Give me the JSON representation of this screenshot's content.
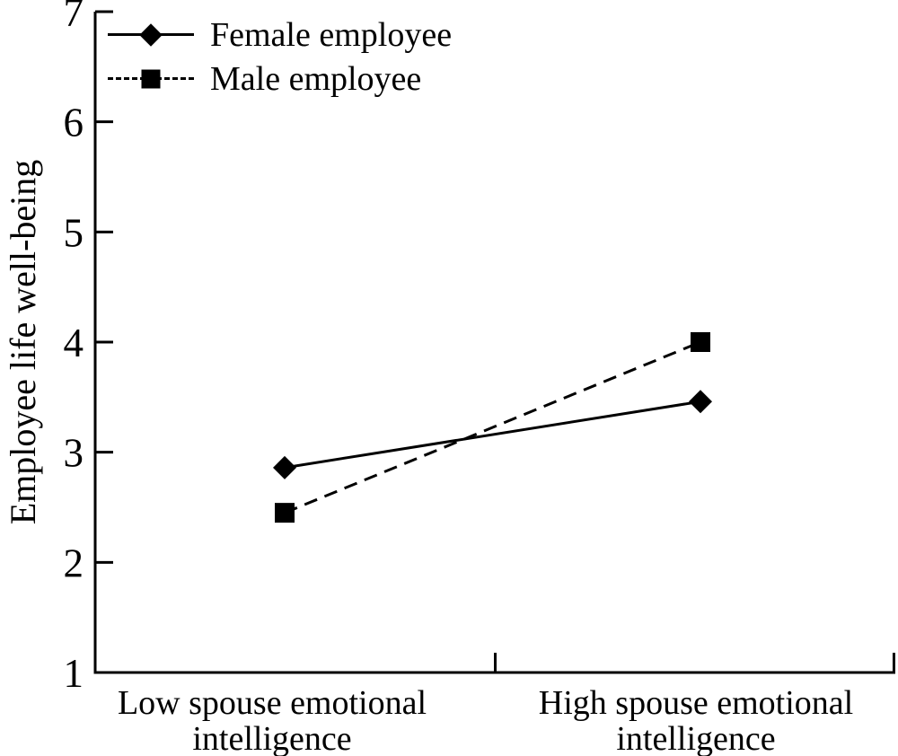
{
  "chart_data": {
    "type": "line",
    "title": "",
    "xlabel": "",
    "ylabel": "Employee life well-being",
    "categories": [
      "Low spouse emotional intelligence",
      "High spouse emotional intelligence"
    ],
    "series": [
      {
        "name": "Female employee",
        "marker": "diamond",
        "line_style": "solid",
        "values": [
          2.86,
          3.46
        ]
      },
      {
        "name": "Male employee",
        "marker": "square",
        "line_style": "dashed",
        "values": [
          2.45,
          4.0
        ]
      }
    ],
    "ylim": [
      1,
      7
    ],
    "yticks": [
      1,
      2,
      3,
      4,
      5,
      6,
      7
    ],
    "grid": false,
    "legend_position": "top-left",
    "colors": {
      "line": "#000000",
      "text": "#000000",
      "background": "#ffffff"
    }
  }
}
